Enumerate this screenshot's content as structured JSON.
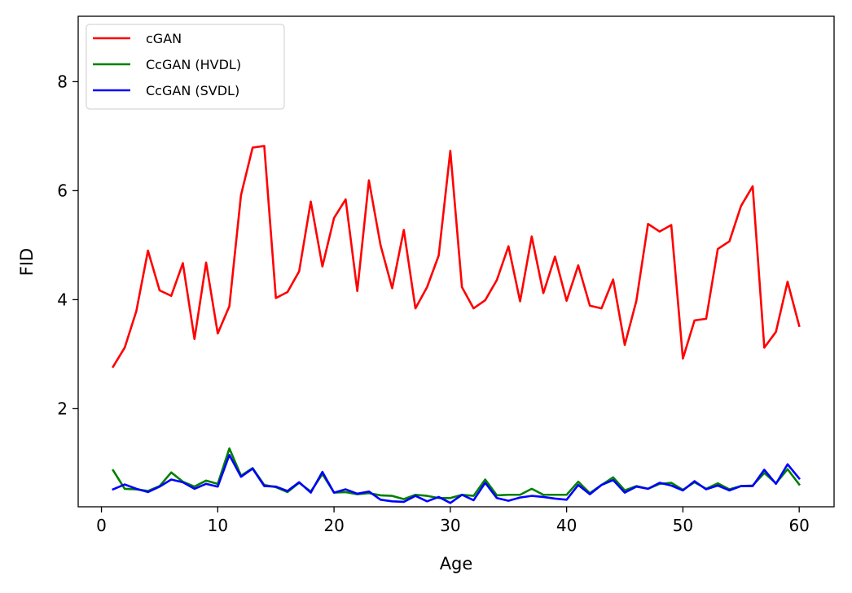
{
  "chart_data": {
    "type": "line",
    "xlabel": "Age",
    "ylabel": "FID",
    "xlim": [
      -2,
      63
    ],
    "ylim": [
      0.2,
      9.2
    ],
    "xticks": [
      0,
      10,
      20,
      30,
      40,
      50,
      60
    ],
    "yticks": [
      2,
      4,
      6,
      8
    ],
    "grid": false,
    "legend_position": "top-left",
    "x": [
      1,
      2,
      3,
      4,
      5,
      6,
      7,
      8,
      9,
      10,
      11,
      12,
      13,
      14,
      15,
      16,
      17,
      18,
      19,
      20,
      21,
      22,
      23,
      24,
      25,
      26,
      27,
      28,
      29,
      30,
      31,
      32,
      33,
      34,
      35,
      36,
      37,
      38,
      39,
      40,
      41,
      42,
      43,
      44,
      45,
      46,
      47,
      48,
      49,
      50,
      51,
      52,
      53,
      54,
      55,
      56,
      57,
      58,
      59,
      60
    ],
    "series": [
      {
        "name": "cGAN",
        "color": "#ff0000",
        "values": [
          2.77,
          3.12,
          3.79,
          4.9,
          4.17,
          4.07,
          4.67,
          3.28,
          4.68,
          3.38,
          3.88,
          5.92,
          6.79,
          6.82,
          4.03,
          4.14,
          4.52,
          5.8,
          4.61,
          5.5,
          5.84,
          4.16,
          6.19,
          5.0,
          4.21,
          5.28,
          3.84,
          4.23,
          4.81,
          6.73,
          4.23,
          3.84,
          3.99,
          4.36,
          4.98,
          3.97,
          5.16,
          4.12,
          4.79,
          3.98,
          4.63,
          3.89,
          3.84,
          4.37,
          3.17,
          3.98,
          5.39,
          5.25,
          5.37,
          2.92,
          3.62,
          3.65,
          4.93,
          5.07,
          5.72,
          6.08,
          3.12,
          3.41,
          4.33,
          3.52
        ]
      },
      {
        "name": "CcGAN (HVDL)",
        "color": "#008000",
        "values": [
          0.87,
          0.53,
          0.52,
          0.49,
          0.58,
          0.83,
          0.66,
          0.57,
          0.68,
          0.62,
          1.27,
          0.77,
          0.91,
          0.6,
          0.56,
          0.47,
          0.64,
          0.48,
          0.8,
          0.46,
          0.47,
          0.43,
          0.45,
          0.41,
          0.4,
          0.34,
          0.42,
          0.4,
          0.36,
          0.36,
          0.42,
          0.4,
          0.7,
          0.41,
          0.42,
          0.42,
          0.53,
          0.42,
          0.42,
          0.42,
          0.66,
          0.45,
          0.6,
          0.74,
          0.5,
          0.58,
          0.53,
          0.62,
          0.64,
          0.51,
          0.65,
          0.53,
          0.63,
          0.52,
          0.58,
          0.59,
          0.82,
          0.63,
          0.89,
          0.61
        ]
      },
      {
        "name": "CcGAN (SVDL)",
        "color": "#0000ff",
        "values": [
          0.52,
          0.61,
          0.53,
          0.47,
          0.57,
          0.7,
          0.65,
          0.53,
          0.62,
          0.57,
          1.15,
          0.75,
          0.9,
          0.58,
          0.57,
          0.49,
          0.65,
          0.46,
          0.84,
          0.46,
          0.52,
          0.44,
          0.48,
          0.33,
          0.3,
          0.29,
          0.4,
          0.3,
          0.38,
          0.27,
          0.42,
          0.32,
          0.64,
          0.36,
          0.31,
          0.37,
          0.4,
          0.38,
          0.35,
          0.33,
          0.6,
          0.43,
          0.6,
          0.69,
          0.46,
          0.57,
          0.53,
          0.64,
          0.59,
          0.5,
          0.67,
          0.52,
          0.59,
          0.5,
          0.58,
          0.58,
          0.88,
          0.62,
          0.98,
          0.72
        ]
      }
    ]
  }
}
